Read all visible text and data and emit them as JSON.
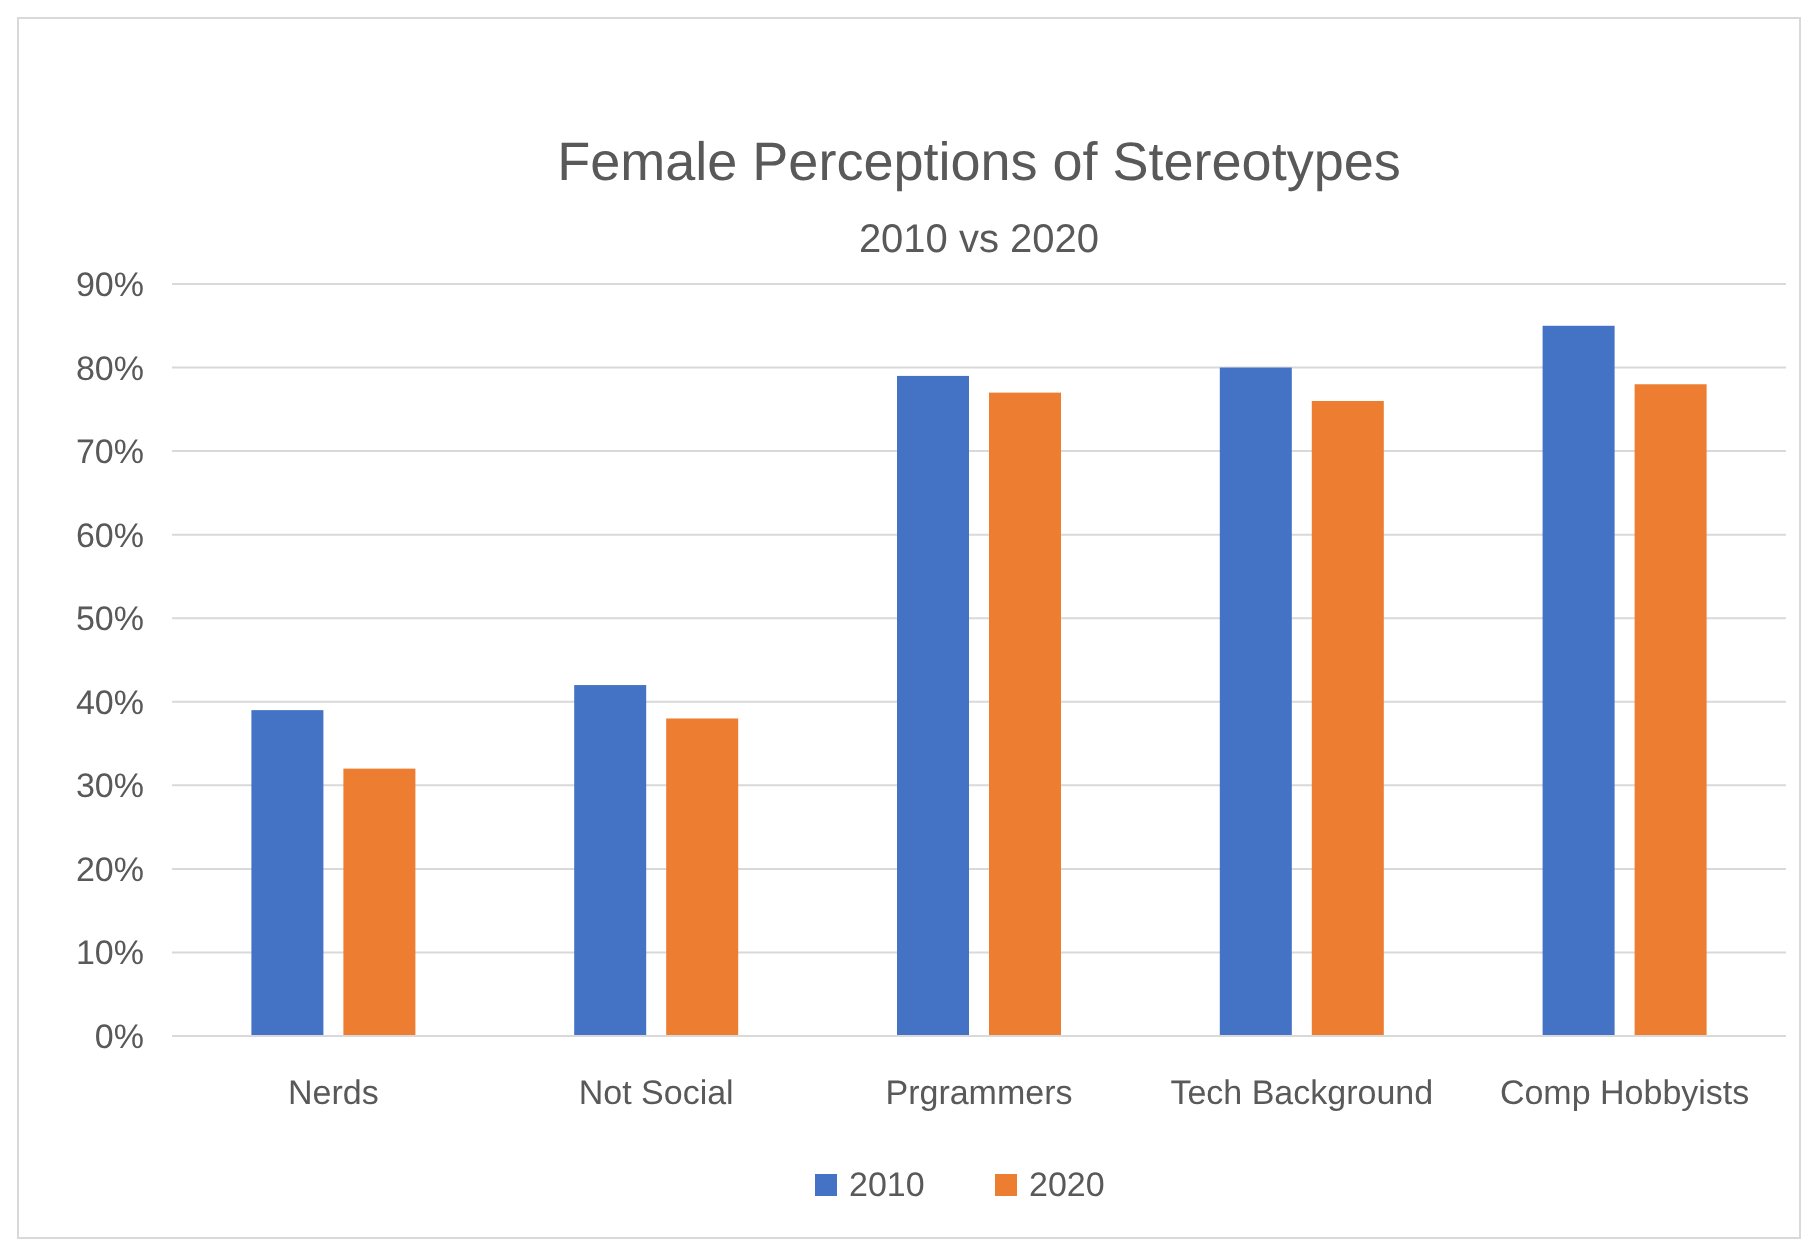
{
  "chart_data": {
    "type": "bar",
    "title": "Female Perceptions of Stereotypes",
    "subtitle": "2010 vs 2020",
    "categories": [
      "Nerds",
      "Not Social",
      "Prgrammers",
      "Tech Background",
      "Comp Hobbyists"
    ],
    "series": [
      {
        "name": "2010",
        "color": "#4472c4",
        "values": [
          39,
          42,
          79,
          80,
          85
        ]
      },
      {
        "name": "2020",
        "color": "#ed7d31",
        "values": [
          32,
          38,
          77,
          76,
          78
        ]
      }
    ],
    "ylim": [
      0,
      90
    ],
    "yticks": [
      {
        "value": 0,
        "label": "0%"
      },
      {
        "value": 10,
        "label": "10%"
      },
      {
        "value": 20,
        "label": "20%"
      },
      {
        "value": 30,
        "label": "30%"
      },
      {
        "value": 40,
        "label": "40%"
      },
      {
        "value": 50,
        "label": "50%"
      },
      {
        "value": 60,
        "label": "60%"
      },
      {
        "value": 70,
        "label": "70%"
      },
      {
        "value": 80,
        "label": "80%"
      },
      {
        "value": 90,
        "label": "90%"
      }
    ],
    "grid": "y",
    "legend": "bottom"
  }
}
